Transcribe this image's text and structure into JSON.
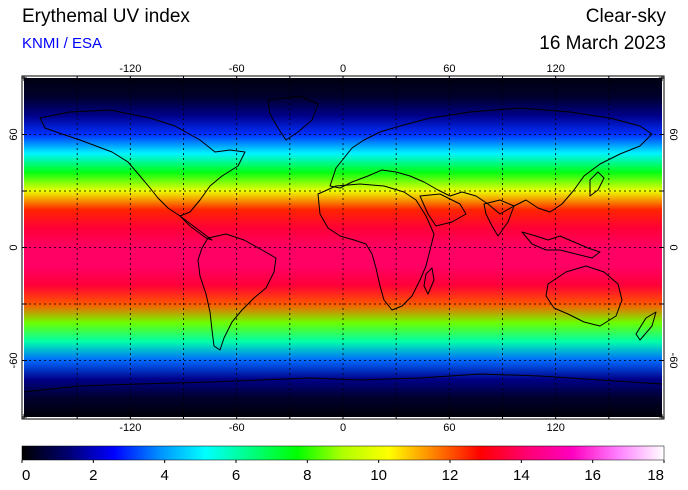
{
  "header": {
    "title": "Erythemal UV index",
    "credit": "KNMI / ESA",
    "sky_condition": "Clear-sky",
    "date": "16 March 2023"
  },
  "map": {
    "projection": "equirectangular",
    "lon_range": [
      -180,
      180
    ],
    "lat_range": [
      -90,
      90
    ],
    "gridlines": {
      "lon_step": 30,
      "lat_step": 30,
      "style": "dotted"
    },
    "lon_tick_labels": [
      "-120",
      "-60",
      "0",
      "60",
      "120"
    ],
    "lat_tick_labels_left": [
      "60",
      "0",
      "-60"
    ],
    "lat_tick_labels_right": [
      "60",
      "0",
      "-60"
    ],
    "uv_field_by_latitude": [
      {
        "lat": 90,
        "uv": 0.2
      },
      {
        "lat": 80,
        "uv": 0.5
      },
      {
        "lat": 70,
        "uv": 1.5
      },
      {
        "lat": 60,
        "uv": 3.0
      },
      {
        "lat": 50,
        "uv": 5.0
      },
      {
        "lat": 40,
        "uv": 7.5
      },
      {
        "lat": 30,
        "uv": 10.0
      },
      {
        "lat": 20,
        "uv": 12.5
      },
      {
        "lat": 10,
        "uv": 13.5
      },
      {
        "lat": 0,
        "uv": 14.0
      },
      {
        "lat": -10,
        "uv": 14.0
      },
      {
        "lat": -20,
        "uv": 13.5
      },
      {
        "lat": -30,
        "uv": 12.0
      },
      {
        "lat": -40,
        "uv": 8.5
      },
      {
        "lat": -50,
        "uv": 6.0
      },
      {
        "lat": -60,
        "uv": 3.5
      },
      {
        "lat": -70,
        "uv": 1.5
      },
      {
        "lat": -80,
        "uv": 0.5
      },
      {
        "lat": -90,
        "uv": 0.1
      }
    ]
  },
  "colorbar": {
    "min": 0,
    "max": 18,
    "tick_labels": [
      "0",
      "2",
      "4",
      "6",
      "8",
      "10",
      "12",
      "14",
      "16",
      "18"
    ],
    "palette": [
      "#000000",
      "#000070",
      "#0000ff",
      "#0090ff",
      "#00ffff",
      "#00ff80",
      "#00ff00",
      "#b0ff00",
      "#ffff00",
      "#ff8000",
      "#ff0000",
      "#ff0070",
      "#ff00c0",
      "#ff80ff",
      "#ffffff"
    ]
  }
}
